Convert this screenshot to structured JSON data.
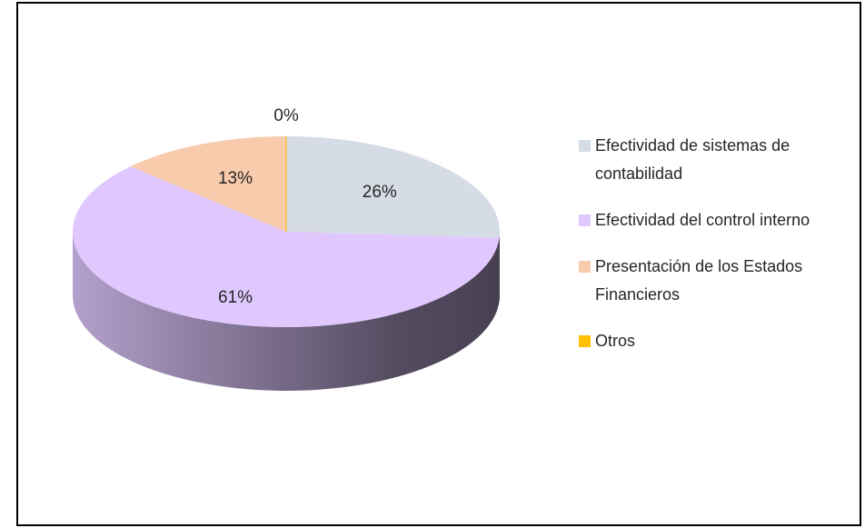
{
  "chart_data": {
    "type": "pie",
    "categories": [
      "Efectividad de sistemas de contabilidad",
      "Efectividad del control interno",
      "Presentación de los Estados Financieros",
      "Otros"
    ],
    "values": [
      26,
      61,
      13,
      0
    ],
    "value_labels": [
      "26%",
      "61%",
      "13%",
      "0%"
    ],
    "colors": [
      "#d6dce5",
      "#e0c8ff",
      "#f8cbad",
      "#ffc000"
    ],
    "legend": "right",
    "style": "3d"
  }
}
